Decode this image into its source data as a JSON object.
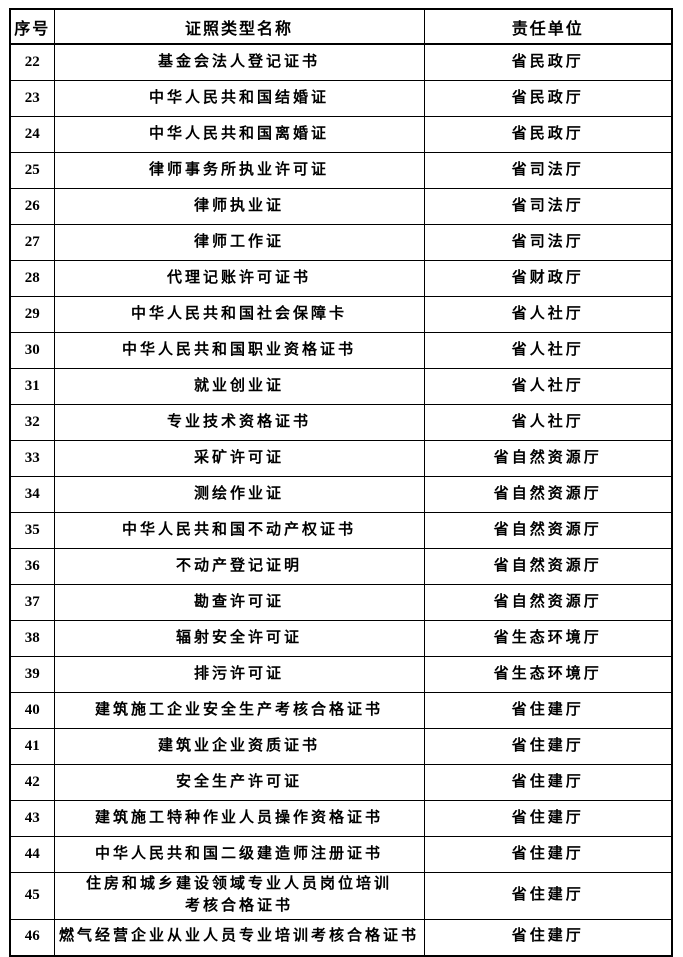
{
  "table": {
    "columns": [
      {
        "key": "no",
        "label": "序号"
      },
      {
        "key": "name",
        "label": "证照类型名称"
      },
      {
        "key": "unit",
        "label": "责任单位"
      }
    ],
    "rows": [
      {
        "no": "22",
        "name": "基金会法人登记证书",
        "unit": "省民政厅"
      },
      {
        "no": "23",
        "name": "中华人民共和国结婚证",
        "unit": "省民政厅"
      },
      {
        "no": "24",
        "name": "中华人民共和国离婚证",
        "unit": "省民政厅"
      },
      {
        "no": "25",
        "name": "律师事务所执业许可证",
        "unit": "省司法厅"
      },
      {
        "no": "26",
        "name": "律师执业证",
        "unit": "省司法厅"
      },
      {
        "no": "27",
        "name": "律师工作证",
        "unit": "省司法厅"
      },
      {
        "no": "28",
        "name": "代理记账许可证书",
        "unit": "省财政厅"
      },
      {
        "no": "29",
        "name": "中华人民共和国社会保障卡",
        "unit": "省人社厅"
      },
      {
        "no": "30",
        "name": "中华人民共和国职业资格证书",
        "unit": "省人社厅"
      },
      {
        "no": "31",
        "name": "就业创业证",
        "unit": "省人社厅"
      },
      {
        "no": "32",
        "name": "专业技术资格证书",
        "unit": "省人社厅"
      },
      {
        "no": "33",
        "name": "采矿许可证",
        "unit": "省自然资源厅"
      },
      {
        "no": "34",
        "name": "测绘作业证",
        "unit": "省自然资源厅"
      },
      {
        "no": "35",
        "name": "中华人民共和国不动产权证书",
        "unit": "省自然资源厅"
      },
      {
        "no": "36",
        "name": "不动产登记证明",
        "unit": "省自然资源厅"
      },
      {
        "no": "37",
        "name": "勘查许可证",
        "unit": "省自然资源厅"
      },
      {
        "no": "38",
        "name": "辐射安全许可证",
        "unit": "省生态环境厅"
      },
      {
        "no": "39",
        "name": "排污许可证",
        "unit": "省生态环境厅"
      },
      {
        "no": "40",
        "name": "建筑施工企业安全生产考核合格证书",
        "unit": "省住建厅"
      },
      {
        "no": "41",
        "name": "建筑业企业资质证书",
        "unit": "省住建厅"
      },
      {
        "no": "42",
        "name": "安全生产许可证",
        "unit": "省住建厅"
      },
      {
        "no": "43",
        "name": "建筑施工特种作业人员操作资格证书",
        "unit": "省住建厅"
      },
      {
        "no": "44",
        "name": "中华人民共和国二级建造师注册证书",
        "unit": "省住建厅"
      },
      {
        "no": "45",
        "name": "住房和城乡建设领域专业人员岗位培训\n考核合格证书",
        "unit": "省住建厅"
      },
      {
        "no": "46",
        "name": "燃气经营企业从业人员专业培训考核合格证书",
        "unit": "省住建厅"
      }
    ],
    "colors": {
      "border": "#000000",
      "text": "#000000",
      "background": "#ffffff"
    }
  }
}
